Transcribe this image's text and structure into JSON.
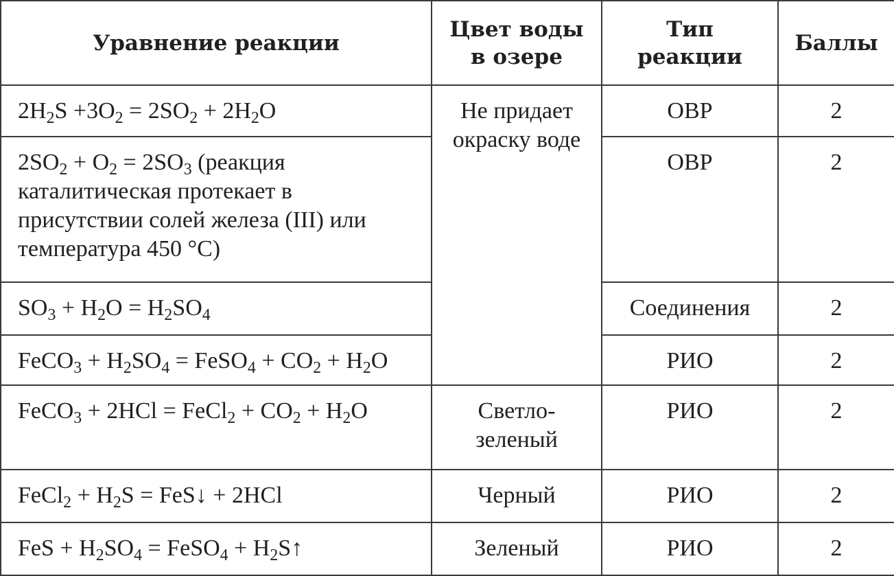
{
  "headers": [
    "Уравнение реакции",
    "Цвет воды в озере",
    "Тип реакции",
    "Баллы"
  ],
  "rows": [
    {
      "equation": "2H₂S +3O₂ = 2SO₂ + 2H₂O",
      "color": "Не придает окраску воде",
      "type": "ОВР",
      "points": "2"
    },
    {
      "equation": "2SO₂ + O₂ = 2SO₃ (реакция каталитическая протекает в присутствии солей железа (III) или температура 450 °С)",
      "type": "ОВР",
      "points": "2"
    },
    {
      "equation": "SO₃ + H₂O = H₂SO₄",
      "type": "Соединения",
      "points": "2"
    },
    {
      "equation": "FeCO₃ + H₂SO₄ = FeSO₄ + CO₂ + H₂O",
      "type": "РИО",
      "points": "2"
    },
    {
      "equation": "FeCO₃ + 2HCl = FeCl₂ + CO₂ + H₂O",
      "color": "Светло-зеленый",
      "type": "РИО",
      "points": "2"
    },
    {
      "equation": "FeCl₂ + H₂S = FeS↓ + 2HCl",
      "color": "Черный",
      "type": "РИО",
      "points": "2"
    },
    {
      "equation": "FeS + H₂SO₄ = FeSO₄ + H₂S↑",
      "color": "Зеленый",
      "type": "РИО",
      "points": "2"
    }
  ]
}
